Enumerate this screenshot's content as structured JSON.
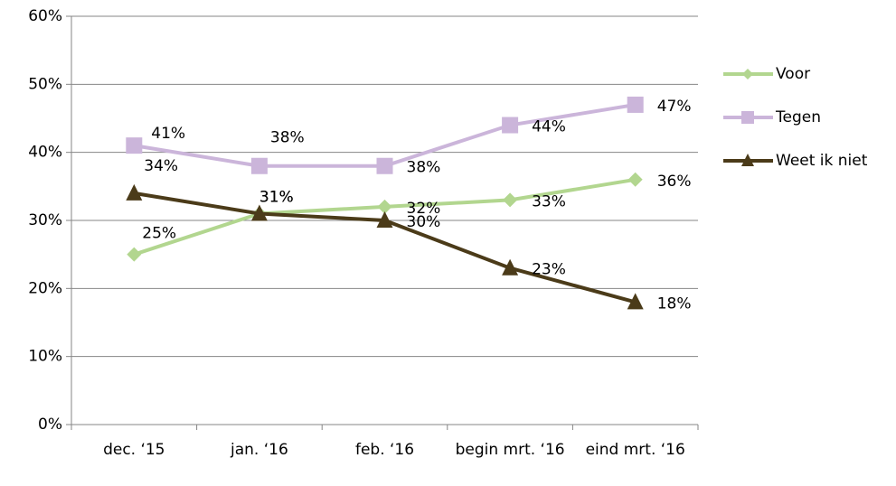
{
  "chart_data": {
    "type": "line",
    "categories": [
      "dec. ‘15",
      "jan. ‘16",
      "feb. ‘16",
      "begin mrt. ‘16",
      "eind mrt. ‘16"
    ],
    "series": [
      {
        "name": "Voor",
        "color": "#b2d68f",
        "marker": "diamond",
        "values": [
          25,
          31,
          32,
          33,
          36
        ],
        "value_labels": [
          "25%",
          "31%",
          "32%",
          "33%",
          "36%"
        ]
      },
      {
        "name": "Tegen",
        "color": "#cbb5da",
        "marker": "square",
        "values": [
          41,
          38,
          38,
          44,
          47
        ],
        "value_labels": [
          "41%",
          "38%",
          "38%",
          "44%",
          "47%"
        ]
      },
      {
        "name": "Weet ik niet",
        "color": "#4b3b19",
        "marker": "triangle",
        "values": [
          34,
          31,
          30,
          23,
          18
        ],
        "value_labels": [
          "34%",
          "31%",
          "30%",
          "23%",
          "18%"
        ]
      }
    ],
    "ylim": [
      0,
      60
    ],
    "yticks": [
      {
        "value": 0,
        "label": "0%"
      },
      {
        "value": 10,
        "label": "10%"
      },
      {
        "value": 20,
        "label": "20%"
      },
      {
        "value": 30,
        "label": "30%"
      },
      {
        "value": 40,
        "label": "40%"
      },
      {
        "value": 50,
        "label": "50%"
      },
      {
        "value": 60,
        "label": "60%"
      }
    ],
    "grid": true,
    "legend": "right"
  }
}
